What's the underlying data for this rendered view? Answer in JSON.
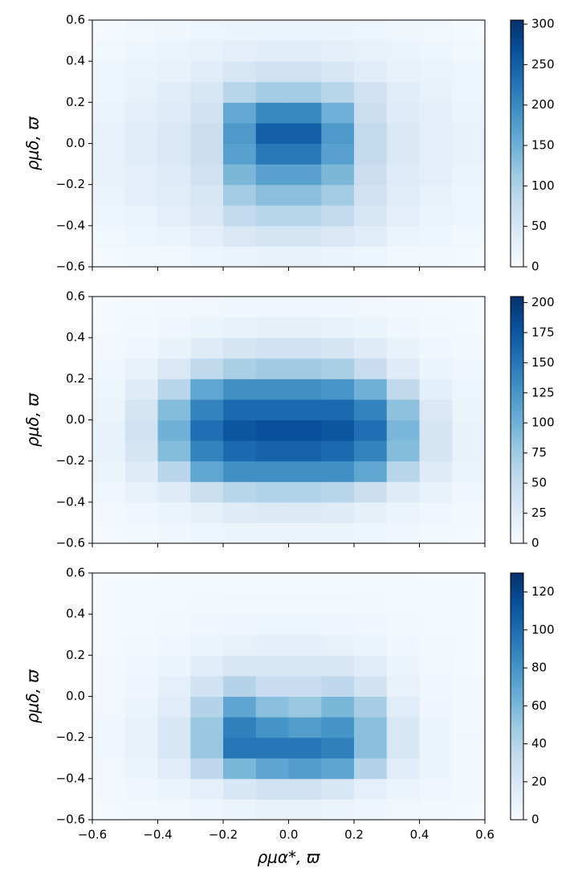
{
  "chart_data": [
    {
      "type": "hist2d",
      "cmap": "Blues",
      "ylabel": "ρμδ, ϖ",
      "xbins": [
        -0.6,
        -0.5,
        -0.4,
        -0.3,
        -0.2,
        -0.1,
        0,
        0.1,
        0.2,
        0.3,
        0.4,
        0.5,
        0.6
      ],
      "ybins": [
        -0.6,
        -0.5,
        -0.4,
        -0.3,
        -0.2,
        -0.1,
        0,
        0.1,
        0.2,
        0.3,
        0.4,
        0.5,
        0.6
      ],
      "values": [
        [
          5,
          8,
          10,
          15,
          20,
          25,
          25,
          20,
          15,
          10,
          8,
          5
        ],
        [
          10,
          15,
          20,
          30,
          45,
          55,
          55,
          45,
          35,
          20,
          15,
          10
        ],
        [
          15,
          20,
          30,
          45,
          80,
          90,
          90,
          80,
          50,
          30,
          20,
          15
        ],
        [
          20,
          30,
          35,
          50,
          110,
          130,
          130,
          110,
          60,
          35,
          25,
          15
        ],
        [
          25,
          30,
          40,
          60,
          140,
          170,
          170,
          140,
          70,
          40,
          30,
          20
        ],
        [
          25,
          35,
          45,
          70,
          170,
          220,
          220,
          170,
          80,
          45,
          30,
          25
        ],
        [
          25,
          35,
          45,
          70,
          180,
          250,
          250,
          180,
          80,
          45,
          30,
          25
        ],
        [
          20,
          30,
          40,
          60,
          160,
          200,
          200,
          150,
          70,
          40,
          30,
          20
        ],
        [
          15,
          25,
          35,
          50,
          90,
          110,
          110,
          90,
          60,
          35,
          25,
          15
        ],
        [
          15,
          20,
          25,
          35,
          50,
          60,
          60,
          50,
          35,
          25,
          20,
          15
        ],
        [
          10,
          15,
          20,
          25,
          30,
          35,
          35,
          30,
          25,
          20,
          15,
          10
        ],
        [
          5,
          10,
          12,
          15,
          18,
          20,
          20,
          18,
          15,
          12,
          10,
          5
        ]
      ],
      "xlim": [
        -0.6,
        0.6
      ],
      "ylim": [
        -0.6,
        0.6
      ],
      "xticks": [
        -0.6,
        -0.4,
        -0.2,
        0,
        0.2,
        0.4,
        0.6
      ],
      "xtick_labels": false,
      "yticks": [
        {
          "value": -0.6,
          "label": "−0.6"
        },
        {
          "value": -0.4,
          "label": "−0.4"
        },
        {
          "value": -0.2,
          "label": "−0.2"
        },
        {
          "value": 0,
          "label": "0.0"
        },
        {
          "value": 0.2,
          "label": "0.2"
        },
        {
          "value": 0.4,
          "label": "0.4"
        },
        {
          "value": 0.6,
          "label": "0.6"
        }
      ],
      "clim": [
        0,
        305
      ],
      "cticks": [
        0,
        50,
        100,
        150,
        200,
        250,
        300
      ]
    },
    {
      "type": "hist2d",
      "cmap": "Blues",
      "ylabel": "ρμδ, ϖ",
      "xbins": [
        -0.6,
        -0.5,
        -0.4,
        -0.3,
        -0.2,
        -0.1,
        0,
        0.1,
        0.2,
        0.3,
        0.4,
        0.5,
        0.6
      ],
      "ybins": [
        -0.6,
        -0.5,
        -0.4,
        -0.3,
        -0.2,
        -0.1,
        0,
        0.1,
        0.2,
        0.3,
        0.4,
        0.5,
        0.6
      ],
      "values": [
        [
          3,
          5,
          8,
          10,
          12,
          12,
          12,
          12,
          10,
          8,
          5,
          3
        ],
        [
          5,
          8,
          12,
          18,
          25,
          28,
          28,
          25,
          18,
          12,
          8,
          5
        ],
        [
          8,
          15,
          25,
          45,
          60,
          65,
          65,
          60,
          45,
          25,
          15,
          8
        ],
        [
          12,
          25,
          60,
          110,
          130,
          130,
          130,
          130,
          110,
          60,
          25,
          12
        ],
        [
          15,
          35,
          90,
          140,
          160,
          165,
          165,
          160,
          140,
          90,
          35,
          15
        ],
        [
          15,
          40,
          100,
          155,
          175,
          180,
          180,
          175,
          155,
          95,
          35,
          15
        ],
        [
          12,
          35,
          90,
          140,
          160,
          160,
          160,
          160,
          140,
          85,
          30,
          12
        ],
        [
          10,
          25,
          60,
          110,
          130,
          130,
          130,
          125,
          100,
          55,
          20,
          10
        ],
        [
          8,
          15,
          30,
          55,
          70,
          75,
          75,
          70,
          50,
          25,
          12,
          8
        ],
        [
          5,
          8,
          15,
          25,
          35,
          40,
          40,
          35,
          25,
          15,
          8,
          5
        ],
        [
          3,
          5,
          8,
          12,
          15,
          18,
          18,
          15,
          12,
          8,
          5,
          3
        ],
        [
          2,
          3,
          5,
          6,
          8,
          8,
          8,
          8,
          6,
          5,
          3,
          2
        ]
      ],
      "xlim": [
        -0.6,
        0.6
      ],
      "ylim": [
        -0.6,
        0.6
      ],
      "xticks": [
        -0.6,
        -0.4,
        -0.2,
        0,
        0.2,
        0.4,
        0.6
      ],
      "xtick_labels": false,
      "yticks": [
        {
          "value": -0.6,
          "label": "−0.6"
        },
        {
          "value": -0.4,
          "label": "−0.4"
        },
        {
          "value": -0.2,
          "label": "−0.2"
        },
        {
          "value": 0,
          "label": "0.0"
        },
        {
          "value": 0.2,
          "label": "0.2"
        },
        {
          "value": 0.4,
          "label": "0.4"
        },
        {
          "value": 0.6,
          "label": "0.6"
        }
      ],
      "clim": [
        0,
        205
      ],
      "cticks": [
        0,
        25,
        50,
        75,
        100,
        125,
        150,
        175,
        200
      ]
    },
    {
      "type": "hist2d",
      "cmap": "Blues",
      "ylabel": "ρμδ, ϖ",
      "xlabel": "ρμα*, ϖ",
      "xbins": [
        -0.6,
        -0.5,
        -0.4,
        -0.3,
        -0.2,
        -0.1,
        0,
        0.1,
        0.2,
        0.3,
        0.4,
        0.5,
        0.6
      ],
      "ybins": [
        -0.6,
        -0.5,
        -0.4,
        -0.3,
        -0.2,
        -0.1,
        0,
        0.1,
        0.2,
        0.3,
        0.4,
        0.5,
        0.6
      ],
      "values": [
        [
          2,
          3,
          4,
          6,
          8,
          10,
          10,
          8,
          6,
          4,
          3,
          2
        ],
        [
          3,
          5,
          8,
          12,
          20,
          25,
          25,
          20,
          12,
          8,
          5,
          3
        ],
        [
          4,
          8,
          15,
          35,
          60,
          70,
          75,
          70,
          40,
          15,
          8,
          4
        ],
        [
          5,
          10,
          20,
          50,
          95,
          95,
          95,
          90,
          55,
          20,
          8,
          4
        ],
        [
          5,
          10,
          20,
          50,
          90,
          80,
          75,
          80,
          55,
          20,
          8,
          4
        ],
        [
          4,
          8,
          15,
          40,
          70,
          55,
          50,
          60,
          45,
          15,
          6,
          3
        ],
        [
          3,
          6,
          12,
          25,
          40,
          30,
          30,
          35,
          25,
          10,
          5,
          3
        ],
        [
          3,
          5,
          8,
          15,
          20,
          20,
          20,
          20,
          15,
          8,
          4,
          2
        ],
        [
          2,
          3,
          5,
          8,
          10,
          12,
          12,
          10,
          8,
          5,
          3,
          2
        ],
        [
          2,
          2,
          3,
          5,
          6,
          7,
          7,
          6,
          5,
          3,
          2,
          2
        ],
        [
          1,
          2,
          2,
          3,
          4,
          4,
          4,
          4,
          3,
          2,
          2,
          1
        ],
        [
          1,
          1,
          2,
          2,
          2,
          2,
          2,
          2,
          2,
          2,
          1,
          1
        ]
      ],
      "xlim": [
        -0.6,
        0.6
      ],
      "ylim": [
        -0.6,
        0.6
      ],
      "xticks": [
        {
          "value": -0.6,
          "label": "−0.6"
        },
        {
          "value": -0.4,
          "label": "−0.4"
        },
        {
          "value": -0.2,
          "label": "−0.2"
        },
        {
          "value": 0,
          "label": "0.0"
        },
        {
          "value": 0.2,
          "label": "0.2"
        },
        {
          "value": 0.4,
          "label": "0.4"
        },
        {
          "value": 0.6,
          "label": "0.6"
        }
      ],
      "xtick_labels": true,
      "yticks": [
        {
          "value": -0.6,
          "label": "−0.6"
        },
        {
          "value": -0.4,
          "label": "−0.4"
        },
        {
          "value": -0.2,
          "label": "−0.2"
        },
        {
          "value": 0,
          "label": "0.0"
        },
        {
          "value": 0.2,
          "label": "0.2"
        },
        {
          "value": 0.4,
          "label": "0.4"
        },
        {
          "value": 0.6,
          "label": "0.6"
        }
      ],
      "clim": [
        0,
        130
      ],
      "cticks": [
        0,
        20,
        40,
        60,
        80,
        100,
        120
      ]
    }
  ]
}
